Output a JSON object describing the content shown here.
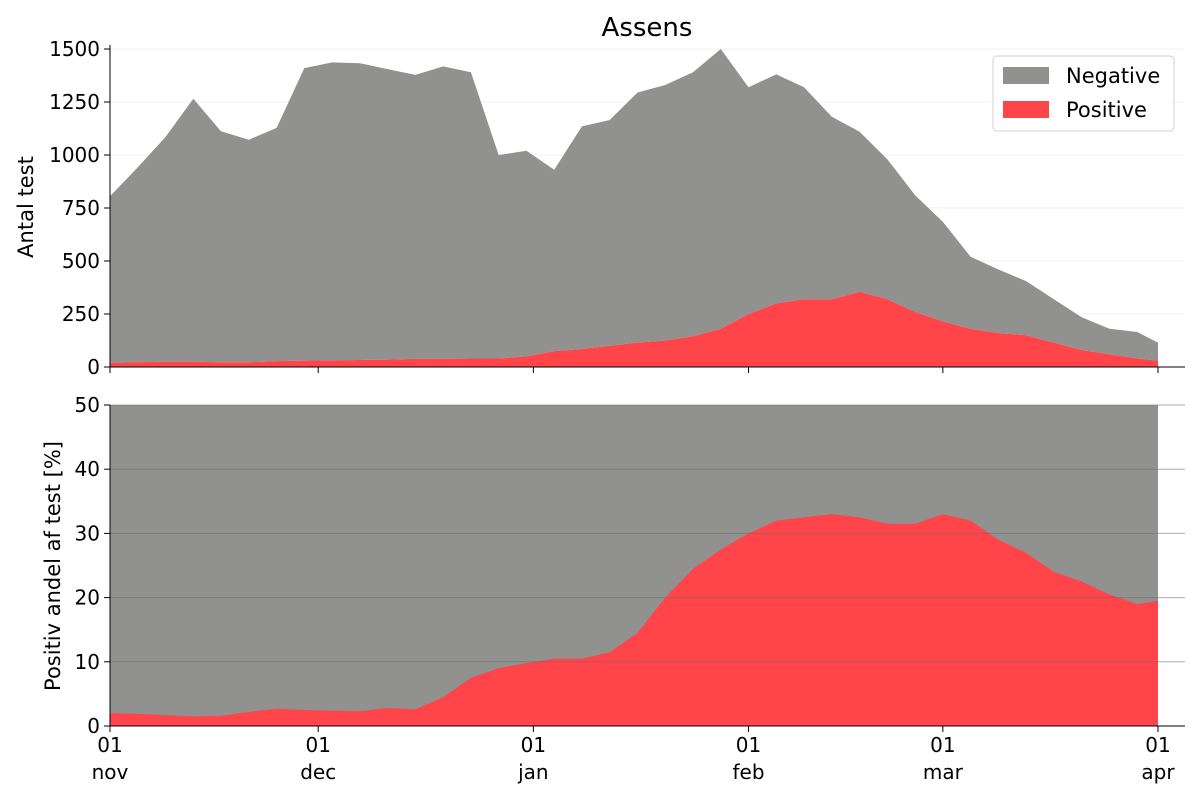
{
  "chart_data": [
    {
      "type": "area",
      "title": "Assens",
      "ylabel": "Antal test",
      "xlabel": "",
      "ylim": [
        0,
        1500
      ],
      "yticks": [
        "0",
        "250",
        "500",
        "750",
        "1000",
        "1250",
        "1500"
      ],
      "stacked": true,
      "legend": {
        "placement": "top-right",
        "entries": [
          "Negative",
          "Positive"
        ]
      },
      "x": [
        "2020-11-01",
        "2020-11-05",
        "2020-11-09",
        "2020-11-13",
        "2020-11-17",
        "2020-11-21",
        "2020-11-25",
        "2020-11-29",
        "2020-12-03",
        "2020-12-07",
        "2020-12-11",
        "2020-12-15",
        "2020-12-19",
        "2020-12-23",
        "2020-12-27",
        "2020-12-31",
        "2021-01-04",
        "2021-01-08",
        "2021-01-12",
        "2021-01-16",
        "2021-01-20",
        "2021-01-24",
        "2021-01-28",
        "2021-02-01",
        "2021-02-05",
        "2021-02-09",
        "2021-02-13",
        "2021-02-17",
        "2021-02-21",
        "2021-02-25",
        "2021-03-01",
        "2021-03-05",
        "2021-03-09",
        "2021-03-13",
        "2021-03-17",
        "2021-03-21",
        "2021-03-25",
        "2021-03-29",
        "2021-04-01"
      ],
      "series": [
        {
          "name": "Positive",
          "color": "#ff4549",
          "values": [
            20,
            22,
            25,
            25,
            22,
            22,
            28,
            30,
            32,
            33,
            35,
            38,
            38,
            40,
            40,
            50,
            75,
            85,
            100,
            115,
            125,
            145,
            180,
            250,
            300,
            320,
            320,
            355,
            320,
            260,
            215,
            180,
            160,
            150,
            115,
            80,
            60,
            40,
            30
          ]
        },
        {
          "name": "Negative",
          "color": "#919290",
          "values": [
            785,
            920,
            1060,
            1240,
            1090,
            1050,
            1100,
            1380,
            1405,
            1400,
            1370,
            1340,
            1380,
            1350,
            960,
            970,
            855,
            1050,
            1065,
            1180,
            1205,
            1245,
            1320,
            1070,
            1080,
            1000,
            860,
            755,
            660,
            550,
            470,
            340,
            300,
            255,
            205,
            155,
            120,
            125,
            85
          ]
        }
      ]
    },
    {
      "type": "area",
      "title": "",
      "ylabel": "Positiv andel af test [%]",
      "xlabel": "",
      "ylim": [
        0,
        50
      ],
      "yticks": [
        "0",
        "10",
        "20",
        "30",
        "40",
        "50"
      ],
      "grid": true,
      "background_color": "#919290",
      "x": [
        "2020-11-01",
        "2020-11-05",
        "2020-11-09",
        "2020-11-13",
        "2020-11-17",
        "2020-11-21",
        "2020-11-25",
        "2020-11-29",
        "2020-12-03",
        "2020-12-07",
        "2020-12-11",
        "2020-12-15",
        "2020-12-19",
        "2020-12-23",
        "2020-12-27",
        "2020-12-31",
        "2021-01-04",
        "2021-01-08",
        "2021-01-12",
        "2021-01-16",
        "2021-01-20",
        "2021-01-24",
        "2021-01-28",
        "2021-02-01",
        "2021-02-05",
        "2021-02-09",
        "2021-02-13",
        "2021-02-17",
        "2021-02-21",
        "2021-02-25",
        "2021-03-01",
        "2021-03-05",
        "2021-03-09",
        "2021-03-13",
        "2021-03-17",
        "2021-03-21",
        "2021-03-25",
        "2021-03-29",
        "2021-04-01"
      ],
      "series": [
        {
          "name": "",
          "color": "#ff4549",
          "values": [
            2.0,
            1.9,
            1.7,
            1.5,
            1.6,
            2.2,
            2.7,
            2.5,
            2.4,
            2.3,
            2.8,
            2.6,
            4.5,
            7.5,
            9.0,
            9.8,
            10.5,
            10.5,
            11.5,
            14.5,
            20.0,
            24.5,
            27.5,
            30.0,
            32.0,
            32.5,
            33.0,
            32.5,
            31.5,
            31.5,
            33.0,
            32.0,
            29.0,
            27.0,
            24.0,
            22.5,
            20.5,
            19.0,
            19.5
          ]
        }
      ]
    }
  ],
  "x_tick_labels": [
    {
      "date": "2020-11-01",
      "day": "01",
      "month": "nov"
    },
    {
      "date": "2020-12-01",
      "day": "01",
      "month": "dec"
    },
    {
      "date": "2021-01-01",
      "day": "01",
      "month": "jan"
    },
    {
      "date": "2021-02-01",
      "day": "01",
      "month": "feb"
    },
    {
      "date": "2021-03-01",
      "day": "01",
      "month": "mar"
    },
    {
      "date": "2021-04-01",
      "day": "01",
      "month": "apr"
    }
  ],
  "x_range": [
    "2020-11-01",
    "2021-04-01"
  ]
}
